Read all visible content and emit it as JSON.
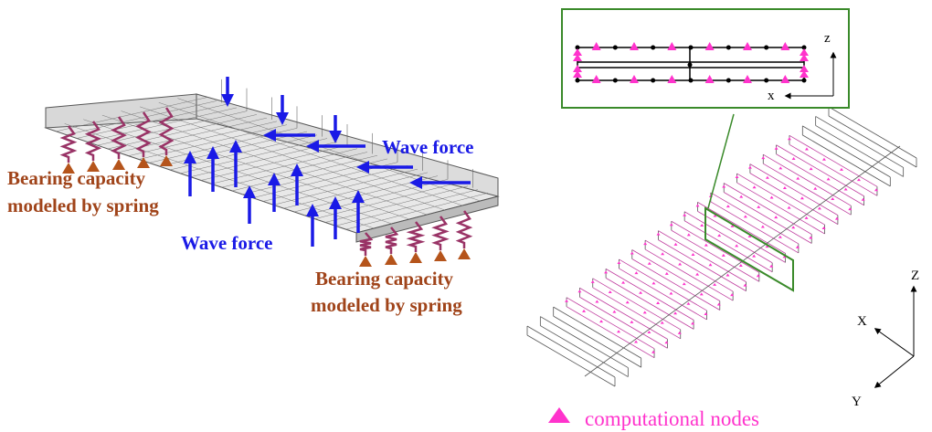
{
  "left_panel": {
    "wave_force_labels": [
      "Wave force",
      "Wave force"
    ],
    "bearing_labels": [
      {
        "lines": [
          "Bearing capacity",
          "modeled by spring"
        ]
      },
      {
        "lines": [
          "Bearing capacity",
          "modeled by spring"
        ]
      }
    ]
  },
  "right_panel": {
    "inset_axes": {
      "z": "z",
      "x": "x"
    },
    "axes": {
      "Z": "Z",
      "X": "X",
      "Y": "Y"
    },
    "legend": "computational nodes"
  }
}
